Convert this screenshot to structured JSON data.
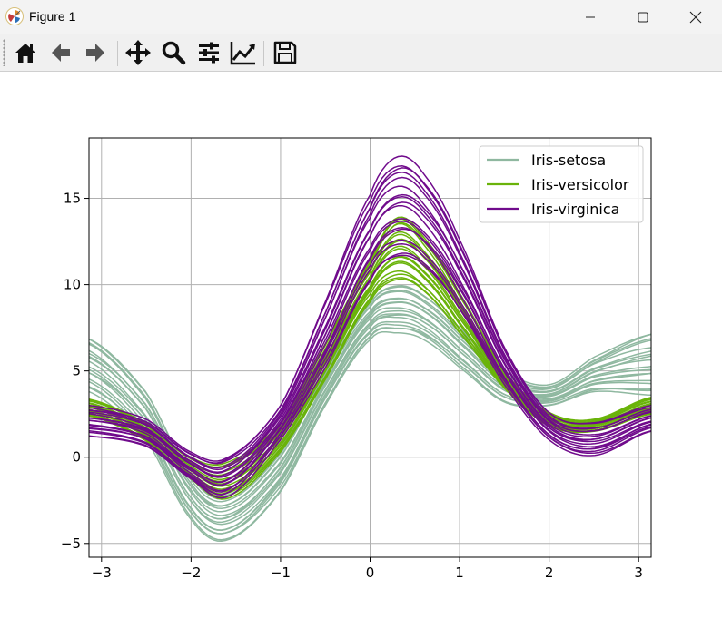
{
  "window": {
    "title": "Figure 1",
    "icons": [
      "matplotlib-app-icon",
      "minimize-icon",
      "maximize-icon",
      "close-icon"
    ]
  },
  "toolbar": {
    "buttons": [
      "home-icon",
      "back-icon",
      "forward-icon",
      "pan-icon",
      "zoom-icon",
      "configure-subplots-icon",
      "edit-axis-icon",
      "save-icon"
    ]
  },
  "colors": {
    "setosa": "#8fb8a0",
    "versicolor": "#6ab30a",
    "virginica": "#700b8c",
    "grid": "#b0b0b0"
  },
  "chart_data": {
    "type": "line",
    "title": "",
    "xlabel": "",
    "ylabel": "",
    "xlim": [
      -3.14,
      3.14
    ],
    "ylim": [
      -5.8,
      18.5
    ],
    "xticks": [
      "−3",
      "−2",
      "−1",
      "0",
      "1",
      "2",
      "3"
    ],
    "yticks": [
      "−5",
      "0",
      "5",
      "10",
      "15"
    ],
    "grid": true,
    "legend_position": "top-right",
    "series": [
      {
        "name": "Iris-setosa",
        "color": "#8fb8a0",
        "x": [
          -3.14,
          -2.5,
          -2.0,
          -1.6,
          -1.0,
          -0.5,
          0.0,
          0.3,
          0.6,
          1.0,
          1.5,
          2.0,
          2.5,
          3.14
        ],
        "y_upper": [
          7.0,
          3.8,
          -1.0,
          -2.2,
          0.5,
          5.0,
          9.0,
          10.0,
          9.4,
          7.5,
          5.0,
          4.2,
          5.8,
          7.3
        ],
        "y_lower": [
          3.8,
          1.0,
          -3.6,
          -4.8,
          -2.0,
          3.0,
          6.8,
          7.2,
          6.8,
          5.2,
          3.2,
          3.0,
          3.8,
          3.6
        ]
      },
      {
        "name": "Iris-versicolor",
        "color": "#6ab30a",
        "x": [
          -3.14,
          -2.5,
          -2.0,
          -1.6,
          -1.0,
          -0.5,
          0.0,
          0.3,
          0.6,
          1.0,
          1.5,
          2.0,
          2.5,
          3.14
        ],
        "y_upper": [
          3.4,
          2.0,
          0.0,
          -0.3,
          2.0,
          6.6,
          11.4,
          14.0,
          12.8,
          9.5,
          5.0,
          2.6,
          2.2,
          3.5
        ],
        "y_lower": [
          2.4,
          0.9,
          -1.3,
          -2.4,
          0.3,
          4.5,
          9.0,
          10.2,
          9.5,
          7.1,
          4.0,
          1.8,
          1.5,
          2.5
        ]
      },
      {
        "name": "Iris-virginica",
        "color": "#700b8c",
        "x": [
          -3.14,
          -2.5,
          -2.0,
          -1.6,
          -1.0,
          -0.5,
          0.0,
          0.3,
          0.6,
          1.0,
          1.5,
          2.0,
          2.5,
          3.14
        ],
        "y_upper": [
          3.0,
          2.2,
          0.3,
          0.0,
          3.0,
          9.0,
          15.2,
          17.4,
          16.4,
          12.6,
          6.4,
          2.6,
          2.0,
          3.0
        ],
        "y_lower": [
          1.2,
          0.6,
          -1.3,
          -2.3,
          1.0,
          5.2,
          10.2,
          11.6,
          11.0,
          8.4,
          4.2,
          1.0,
          0.1,
          1.5
        ]
      }
    ]
  }
}
